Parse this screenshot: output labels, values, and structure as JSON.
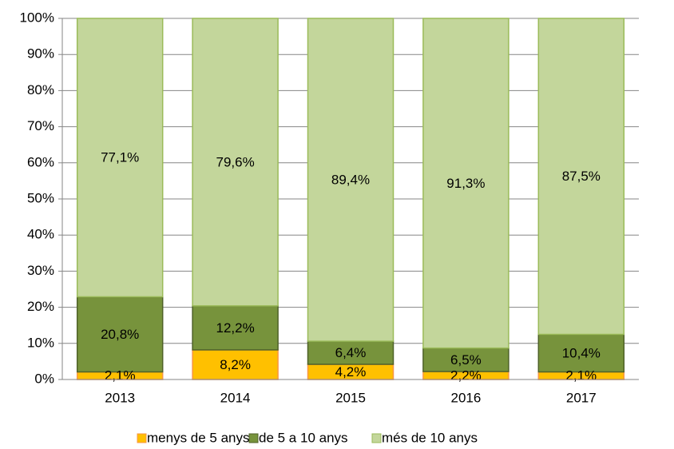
{
  "chart_data": {
    "type": "stacked_bar",
    "categories": [
      "2013",
      "2014",
      "2015",
      "2016",
      "2017"
    ],
    "series": [
      {
        "name": "menys de 5 anys",
        "color": "#ffc000",
        "stroke": "#f79646",
        "values": [
          2.1,
          8.2,
          4.2,
          2.2,
          2.1
        ],
        "value_labels": [
          "2,1%",
          "8,2%",
          "4,2%",
          "2,2%",
          "2,1%"
        ]
      },
      {
        "name": "de 5 a 10 anys",
        "color": "#77933c",
        "stroke": "#4f6228",
        "values": [
          20.8,
          12.2,
          6.4,
          6.5,
          10.4
        ],
        "value_labels": [
          "20,8%",
          "12,2%",
          "6,4%",
          "6,5%",
          "10,4%"
        ]
      },
      {
        "name": "més de 10 anys",
        "color": "#c3d69b",
        "stroke": "#9bbb59",
        "values": [
          77.1,
          79.6,
          89.4,
          91.3,
          87.5
        ],
        "value_labels": [
          "77,1%",
          "79,6%",
          "89,4%",
          "91,3%",
          "87,5%"
        ]
      }
    ],
    "ylim": [
      0,
      100
    ],
    "yticks": [
      {
        "value": 0,
        "label": "0%"
      },
      {
        "value": 10,
        "label": "10%"
      },
      {
        "value": 20,
        "label": "20%"
      },
      {
        "value": 30,
        "label": "30%"
      },
      {
        "value": 40,
        "label": "40%"
      },
      {
        "value": 50,
        "label": "50%"
      },
      {
        "value": 60,
        "label": "60%"
      },
      {
        "value": 70,
        "label": "70%"
      },
      {
        "value": 80,
        "label": "80%"
      },
      {
        "value": 90,
        "label": "90%"
      },
      {
        "value": 100,
        "label": "100%"
      }
    ],
    "grid": true,
    "legend": "bottom"
  }
}
